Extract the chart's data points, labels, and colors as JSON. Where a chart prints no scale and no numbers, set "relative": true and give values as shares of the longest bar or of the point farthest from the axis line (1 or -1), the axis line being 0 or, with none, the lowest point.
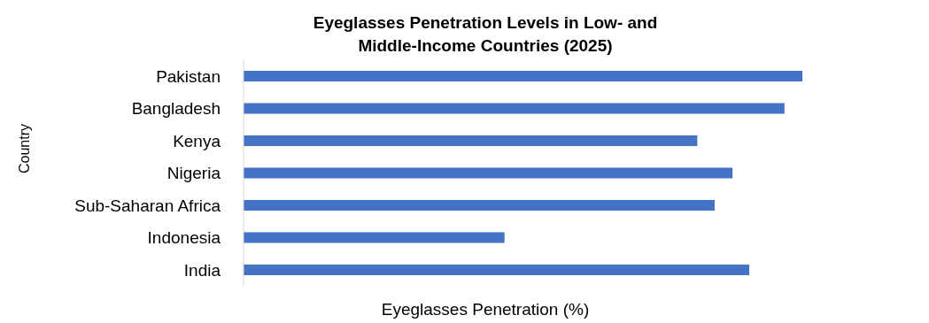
{
  "chart_data": {
    "type": "bar",
    "orientation": "horizontal",
    "relative": true,
    "title": "Eyeglasses Penetration Levels in Low- and\nMiddle-Income Countries (2025)",
    "xlabel": "Eyeglasses  Penetration (%)",
    "ylabel": "Country",
    "categories": [
      "Pakistan",
      "Bangladesh",
      "Kenya",
      "Nigeria",
      "Sub-Saharan Africa",
      "Indonesia",
      "India"
    ],
    "values": [
      1,
      0.968,
      0.812,
      0.875,
      0.843,
      0.467,
      0.905
    ],
    "color": "#4472c4"
  }
}
